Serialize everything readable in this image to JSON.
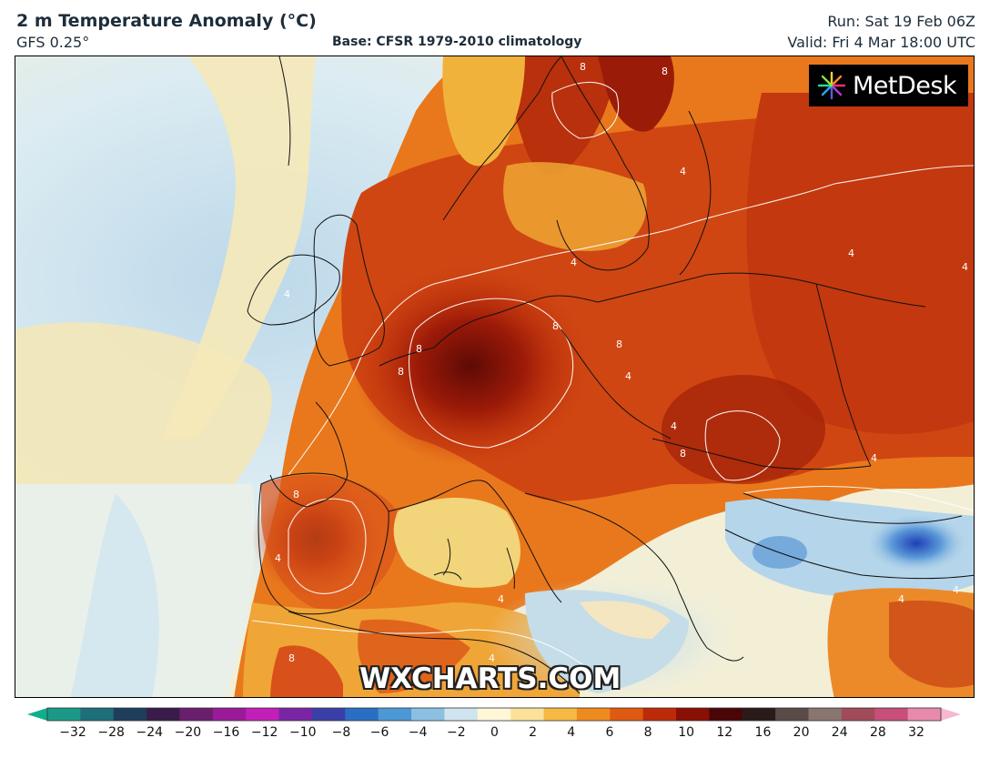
{
  "header": {
    "title": "2 m Temperature Anomaly (°C)",
    "model": "GFS 0.25°",
    "base": "Base: CFSR 1979-2010 climatology",
    "run": "Run: Sat 19 Feb 06Z",
    "valid": "Valid: Fri 4 Mar 18:00 UTC"
  },
  "logo": {
    "text": "MetDesk",
    "icon": "metdesk-pinwheel-icon"
  },
  "watermark": "WXCHARTS.COM",
  "contour_labels": [
    "4",
    "8"
  ],
  "legend": {
    "ticks": [
      "−32",
      "−28",
      "−24",
      "−20",
      "−16",
      "−12",
      "−10",
      "−8",
      "−6",
      "−4",
      "−2",
      "0",
      "2",
      "4",
      "6",
      "8",
      "10",
      "12",
      "16",
      "20",
      "24",
      "28",
      "32"
    ],
    "colors": {
      "below_min": "#0fae8c",
      "above_max": "#f4b8d0",
      "ramp": [
        "#1a9a86",
        "#1d6f7a",
        "#1e3e5c",
        "#3a1c4a",
        "#6a1f6d",
        "#9a1a9a",
        "#c21fb8",
        "#7a25a6",
        "#3a3fa8",
        "#2a6ec4",
        "#4c98d4",
        "#8cc0e2",
        "#cfe4ef",
        "#fff7d8",
        "#fbe19a",
        "#f5b944",
        "#ee8b1e",
        "#de5a12",
        "#bd2a08",
        "#8a0f05",
        "#4a0606",
        "#2a1a1a",
        "#5a4a48",
        "#8a7670",
        "#a14a5a",
        "#c74f7a",
        "#e88aac"
      ]
    }
  }
}
